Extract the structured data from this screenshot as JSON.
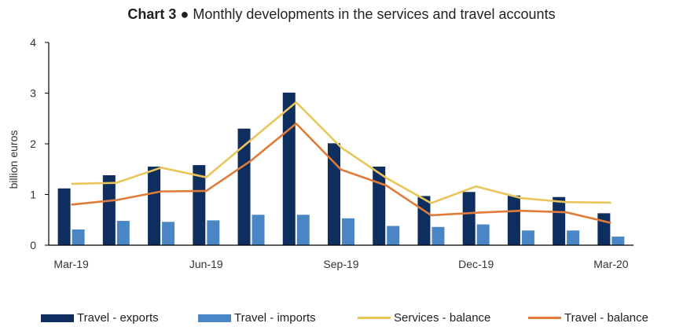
{
  "title_prefix": "Chart 3",
  "title_bullet": "●",
  "title_text": "Monthly developments in the services and travel accounts",
  "colors": {
    "exports": "#0d2e5e",
    "imports": "#4a86c5",
    "services_balance": "#e9c55a",
    "travel_balance": "#e07b39",
    "axis": "#000000"
  },
  "chart_data": {
    "type": "bar",
    "categories": [
      "Mar-19",
      "Apr-19",
      "May-19",
      "Jun-19",
      "Jul-19",
      "Aug-19",
      "Sep-19",
      "Oct-19",
      "Nov-19",
      "Dec-19",
      "Jan-20",
      "Feb-20",
      "Mar-20"
    ],
    "tick_labels": [
      "Mar-19",
      "",
      "",
      "Jun-19",
      "",
      "",
      "Sep-19",
      "",
      "",
      "Dec-19",
      "",
      "",
      "Mar-20"
    ],
    "ylabel": "billion euros",
    "ylim": [
      0,
      4
    ],
    "yticks": [
      0,
      1,
      2,
      3,
      4
    ],
    "grid": false,
    "legend_position": "bottom",
    "series": [
      {
        "name": "Travel - exports",
        "kind": "bar",
        "values": [
          1.12,
          1.38,
          1.55,
          1.58,
          2.3,
          3.01,
          2.01,
          1.55,
          0.97,
          1.05,
          0.98,
          0.95,
          0.63
        ]
      },
      {
        "name": "Travel - imports",
        "kind": "bar",
        "values": [
          0.31,
          0.48,
          0.46,
          0.49,
          0.6,
          0.6,
          0.53,
          0.38,
          0.36,
          0.41,
          0.29,
          0.29,
          0.17
        ]
      },
      {
        "name": "Services - balance",
        "kind": "line",
        "values": [
          1.21,
          1.23,
          1.53,
          1.34,
          2.08,
          2.82,
          1.93,
          1.33,
          0.83,
          1.16,
          0.93,
          0.85,
          0.84
        ]
      },
      {
        "name": "Travel - balance",
        "kind": "line",
        "values": [
          0.8,
          0.89,
          1.06,
          1.07,
          1.67,
          2.4,
          1.49,
          1.18,
          0.59,
          0.64,
          0.68,
          0.65,
          0.44
        ]
      }
    ]
  }
}
